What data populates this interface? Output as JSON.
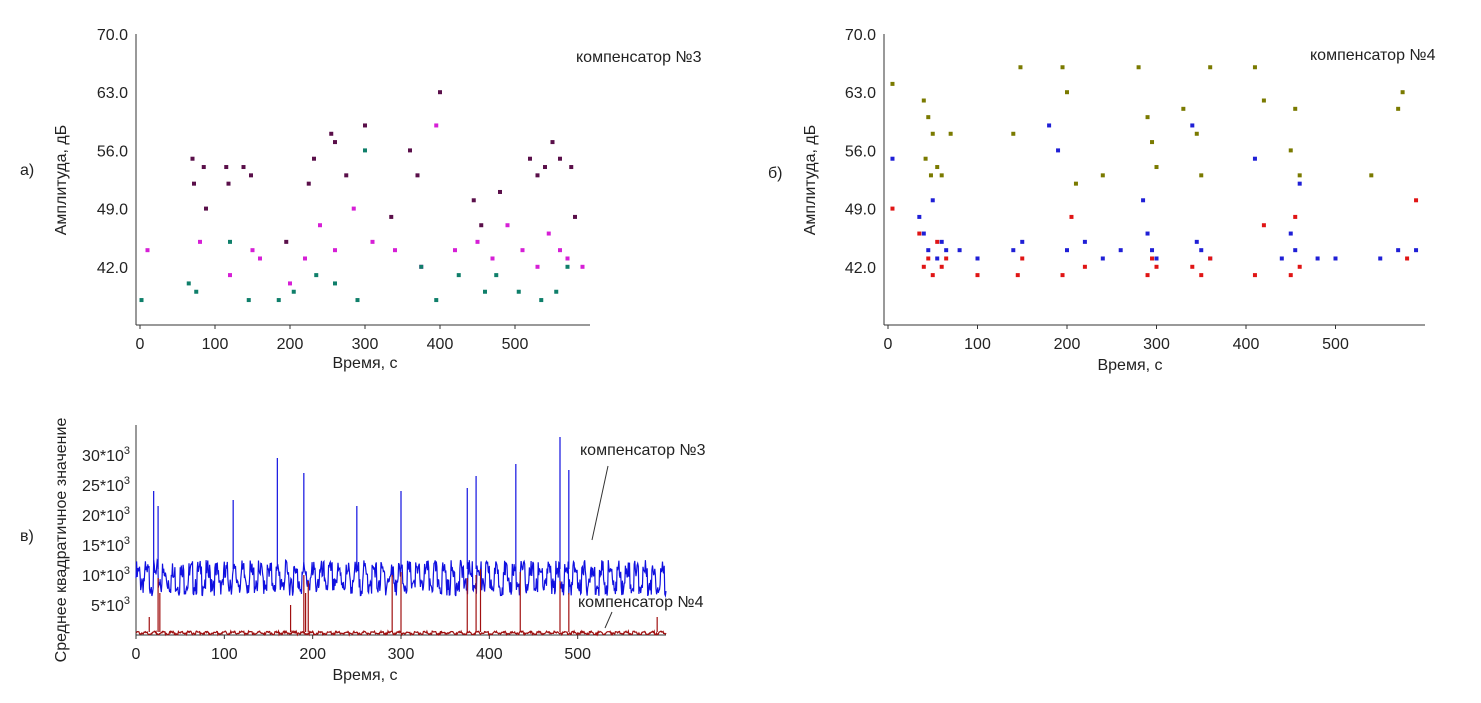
{
  "panel_labels": {
    "a": "а)",
    "b": "б)",
    "c": "в)"
  },
  "colors": {
    "dark_purple": "#5a0f4a",
    "magenta": "#d61fd6",
    "teal": "#0f7f6a",
    "olive": "#7a7a00",
    "blue": "#1f1fd6",
    "red": "#e01515",
    "trace_blue": "#1010e0",
    "trace_red": "#a01010"
  },
  "chart_data": [
    {
      "id": "a",
      "type": "scatter",
      "annotation": "компенсатор №3",
      "xlabel": "Время, с",
      "ylabel": "Амплитуда, дБ",
      "xlim": [
        0,
        600
      ],
      "ylim": [
        35,
        70
      ],
      "xticks": [
        "0",
        "100",
        "200",
        "300",
        "400",
        "500"
      ],
      "yticks": [
        "70.0",
        "63.0",
        "56.0",
        "49.0",
        "42.0"
      ],
      "grid": false,
      "series": [
        {
          "color": "#5a0f4a",
          "x": [
            70,
            72,
            85,
            88,
            115,
            118,
            138,
            148,
            195,
            225,
            232,
            255,
            260,
            275,
            300,
            335,
            360,
            370,
            400,
            445,
            455,
            480,
            520,
            530,
            540,
            550,
            560,
            575,
            580
          ],
          "y": [
            55.0,
            52.0,
            54.0,
            49.0,
            54.0,
            52.0,
            54.0,
            53.0,
            45.0,
            52.0,
            55.0,
            58.0,
            57.0,
            53.0,
            59.0,
            48.0,
            56.0,
            53.0,
            63.0,
            50.0,
            47.0,
            51.0,
            55.0,
            53.0,
            54.0,
            57.0,
            55.0,
            54.0,
            48.0
          ]
        },
        {
          "color": "#d61fd6",
          "x": [
            10,
            80,
            120,
            150,
            160,
            200,
            220,
            240,
            260,
            285,
            310,
            340,
            375,
            395,
            420,
            450,
            470,
            490,
            510,
            530,
            545,
            560,
            570,
            590
          ],
          "y": [
            44.0,
            45.0,
            41.0,
            44.0,
            43.0,
            40.0,
            43.0,
            47.0,
            44.0,
            49.0,
            45.0,
            44.0,
            42.0,
            59.0,
            44.0,
            45.0,
            43.0,
            47.0,
            44.0,
            42.0,
            46.0,
            44.0,
            43.0,
            42.0
          ]
        },
        {
          "color": "#0f7f6a",
          "x": [
            2,
            65,
            75,
            120,
            145,
            185,
            205,
            235,
            260,
            290,
            300,
            375,
            395,
            425,
            460,
            475,
            505,
            535,
            555,
            570
          ],
          "y": [
            38.0,
            40.0,
            39.0,
            45.0,
            38.0,
            38.0,
            39.0,
            41.0,
            40.0,
            38.0,
            56.0,
            42.0,
            38.0,
            41.0,
            39.0,
            41.0,
            39.0,
            38.0,
            39.0,
            42.0
          ]
        }
      ]
    },
    {
      "id": "b",
      "type": "scatter",
      "annotation": "компенсатор №4",
      "xlabel": "Время, с",
      "ylabel": "Амплитуда, дБ",
      "xlim": [
        0,
        600
      ],
      "ylim": [
        35,
        70
      ],
      "xticks": [
        "0",
        "100",
        "200",
        "300",
        "400",
        "500"
      ],
      "yticks": [
        "70.0",
        "63.0",
        "56.0",
        "49.0",
        "42.0"
      ],
      "grid": false,
      "series": [
        {
          "color": "#7a7a00",
          "x": [
            5,
            40,
            45,
            50,
            42,
            48,
            55,
            60,
            70,
            140,
            148,
            195,
            200,
            210,
            240,
            280,
            290,
            295,
            300,
            330,
            345,
            350,
            360,
            410,
            420,
            450,
            455,
            460,
            540,
            570,
            575
          ],
          "y": [
            64.0,
            62.0,
            60.0,
            58.0,
            55.0,
            53.0,
            54.0,
            53.0,
            58.0,
            58.0,
            66.0,
            66.0,
            63.0,
            52.0,
            53.0,
            66.0,
            60.0,
            57.0,
            54.0,
            61.0,
            58.0,
            53.0,
            66.0,
            66.0,
            62.0,
            56.0,
            61.0,
            53.0,
            53.0,
            61.0,
            63.0
          ]
        },
        {
          "color": "#1f1fd6",
          "x": [
            5,
            35,
            40,
            45,
            50,
            55,
            60,
            65,
            80,
            100,
            140,
            150,
            180,
            190,
            200,
            220,
            240,
            260,
            285,
            290,
            295,
            300,
            340,
            345,
            350,
            360,
            410,
            440,
            450,
            455,
            460,
            480,
            500,
            550,
            570,
            590
          ],
          "y": [
            55.0,
            48.0,
            46.0,
            44.0,
            50.0,
            43.0,
            45.0,
            44.0,
            44.0,
            43.0,
            44.0,
            45.0,
            59.0,
            56.0,
            44.0,
            45.0,
            43.0,
            44.0,
            50.0,
            46.0,
            44.0,
            43.0,
            59.0,
            45.0,
            44.0,
            43.0,
            55.0,
            43.0,
            46.0,
            44.0,
            52.0,
            43.0,
            43.0,
            43.0,
            44.0,
            44.0
          ]
        },
        {
          "color": "#e01515",
          "x": [
            5,
            35,
            40,
            45,
            50,
            55,
            60,
            65,
            100,
            145,
            150,
            195,
            205,
            220,
            290,
            295,
            300,
            340,
            350,
            360,
            410,
            420,
            450,
            455,
            460,
            580,
            590
          ],
          "y": [
            49.0,
            46.0,
            42.0,
            43.0,
            41.0,
            45.0,
            42.0,
            43.0,
            41.0,
            41.0,
            43.0,
            41.0,
            48.0,
            42.0,
            41.0,
            43.0,
            42.0,
            42.0,
            41.0,
            43.0,
            41.0,
            47.0,
            41.0,
            48.0,
            42.0,
            43.0,
            50.0
          ]
        }
      ]
    },
    {
      "id": "c",
      "type": "line",
      "xlabel": "Время, с",
      "ylabel": "Среднее квадратичное значение",
      "xlim": [
        0,
        600
      ],
      "ylim": [
        0,
        35000
      ],
      "xticks": [
        "0",
        "100",
        "200",
        "300",
        "400",
        "500"
      ],
      "yticks": [
        {
          "value": 30000,
          "base": "30*10",
          "exp": "3"
        },
        {
          "value": 25000,
          "base": "25*10",
          "exp": "3"
        },
        {
          "value": 20000,
          "base": "20*10",
          "exp": "3"
        },
        {
          "value": 15000,
          "base": "15*10",
          "exp": "3"
        },
        {
          "value": 10000,
          "base": "10*10",
          "exp": "3"
        },
        {
          "value": 5000,
          "base": "5*10",
          "exp": "3"
        }
      ],
      "series": [
        {
          "name": "компенсатор №3",
          "color": "#1010e0",
          "baseline": 11000,
          "noise": 3000,
          "spikes": {
            "x": [
              20,
              25,
              110,
              160,
              190,
              250,
              300,
              375,
              385,
              430,
              480,
              490
            ],
            "y": [
              24000,
              21500,
              22500,
              29500,
              27000,
              21500,
              24000,
              24500,
              26500,
              28500,
              33000,
              27500
            ]
          }
        },
        {
          "name": "компенсатор №4",
          "color": "#a01010",
          "baseline": 500,
          "noise": 300,
          "spikes": {
            "x": [
              15,
              25,
              27,
              175,
              190,
              192,
              195,
              290,
              300,
              375,
              385,
              390,
              435,
              480,
              490,
              590
            ],
            "y": [
              3000,
              9500,
              7000,
              5000,
              10000,
              7000,
              9000,
              10000,
              10500,
              9500,
              10000,
              11000,
              10500,
              9000,
              7000,
              3000
            ]
          }
        }
      ]
    }
  ]
}
